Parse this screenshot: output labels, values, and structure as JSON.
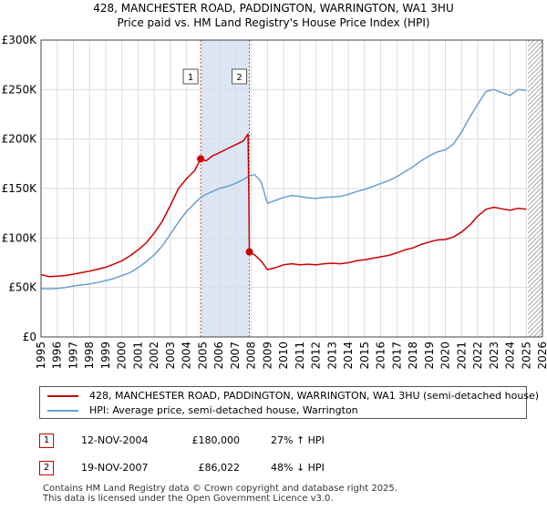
{
  "chart_data": {
    "type": "line",
    "title": "428, MANCHESTER ROAD, PADDINGTON, WARRINGTON, WA1 3HU",
    "subtitle": "Price paid vs. HM Land Registry's House Price Index (HPI)",
    "xlim": [
      1995,
      2026
    ],
    "ylim": [
      0,
      300000
    ],
    "x_ticks": [
      1995,
      1996,
      1997,
      1998,
      1999,
      2000,
      2001,
      2002,
      2003,
      2004,
      2005,
      2006,
      2007,
      2008,
      2009,
      2010,
      2011,
      2012,
      2013,
      2014,
      2015,
      2016,
      2017,
      2018,
      2019,
      2020,
      2021,
      2022,
      2023,
      2024,
      2025,
      2026
    ],
    "y_ticks": [
      0,
      50000,
      100000,
      150000,
      200000,
      250000,
      300000
    ],
    "y_tick_labels": [
      "£0",
      "£50K",
      "£100K",
      "£150K",
      "£200K",
      "£250K",
      "£300K"
    ],
    "grid": true,
    "shaded_period": [
      2004.87,
      2007.88
    ],
    "future_hatch_from": 2025.1,
    "series": [
      {
        "name": "428, MANCHESTER ROAD, PADDINGTON, WARRINGTON, WA1 3HU (semi-detached house)",
        "color": "#cc0000",
        "points": [
          [
            1995.0,
            63000
          ],
          [
            1995.5,
            61000
          ],
          [
            1996.0,
            61500
          ],
          [
            1996.5,
            62000
          ],
          [
            1997.0,
            63500
          ],
          [
            1997.5,
            65000
          ],
          [
            1998.0,
            66500
          ],
          [
            1998.5,
            68500
          ],
          [
            1999.0,
            70500
          ],
          [
            1999.5,
            73500
          ],
          [
            2000.0,
            77000
          ],
          [
            2000.5,
            82000
          ],
          [
            2001.0,
            88000
          ],
          [
            2001.5,
            95000
          ],
          [
            2002.0,
            105000
          ],
          [
            2002.5,
            117000
          ],
          [
            2003.0,
            133000
          ],
          [
            2003.5,
            150000
          ],
          [
            2004.0,
            160000
          ],
          [
            2004.5,
            168000
          ],
          [
            2004.87,
            180000
          ],
          [
            2005.2,
            178000
          ],
          [
            2005.6,
            183000
          ],
          [
            2006.0,
            186000
          ],
          [
            2006.5,
            190000
          ],
          [
            2007.0,
            194000
          ],
          [
            2007.5,
            198000
          ],
          [
            2007.8,
            205000
          ],
          [
            2007.85,
            140000
          ],
          [
            2007.88,
            86022
          ],
          [
            2008.2,
            83000
          ],
          [
            2008.6,
            77000
          ],
          [
            2009.0,
            68000
          ],
          [
            2009.5,
            70000
          ],
          [
            2010.0,
            73000
          ],
          [
            2010.5,
            74000
          ],
          [
            2011.0,
            73000
          ],
          [
            2011.5,
            73500
          ],
          [
            2012.0,
            73000
          ],
          [
            2012.5,
            74000
          ],
          [
            2013.0,
            74500
          ],
          [
            2013.5,
            74000
          ],
          [
            2014.0,
            75000
          ],
          [
            2014.5,
            77000
          ],
          [
            2015.0,
            78000
          ],
          [
            2015.5,
            79500
          ],
          [
            2016.0,
            81000
          ],
          [
            2016.5,
            82500
          ],
          [
            2017.0,
            85000
          ],
          [
            2017.5,
            88000
          ],
          [
            2018.0,
            90000
          ],
          [
            2018.5,
            93500
          ],
          [
            2019.0,
            96000
          ],
          [
            2019.5,
            98000
          ],
          [
            2020.0,
            98500
          ],
          [
            2020.5,
            101000
          ],
          [
            2021.0,
            106000
          ],
          [
            2021.5,
            113000
          ],
          [
            2022.0,
            122000
          ],
          [
            2022.5,
            129000
          ],
          [
            2023.0,
            131000
          ],
          [
            2023.5,
            129500
          ],
          [
            2024.0,
            128000
          ],
          [
            2024.5,
            130000
          ],
          [
            2025.0,
            129000
          ]
        ]
      },
      {
        "name": "HPI: Average price, semi-detached house, Warrington",
        "color": "#6a9fd4",
        "points": [
          [
            1995.0,
            49000
          ],
          [
            1995.5,
            48500
          ],
          [
            1996.0,
            49000
          ],
          [
            1996.5,
            50000
          ],
          [
            1997.0,
            51500
          ],
          [
            1997.5,
            52500
          ],
          [
            1998.0,
            53500
          ],
          [
            1998.5,
            55000
          ],
          [
            1999.0,
            57000
          ],
          [
            1999.5,
            59000
          ],
          [
            2000.0,
            62000
          ],
          [
            2000.5,
            65000
          ],
          [
            2001.0,
            70000
          ],
          [
            2001.5,
            76000
          ],
          [
            2002.0,
            83000
          ],
          [
            2002.5,
            92000
          ],
          [
            2003.0,
            104000
          ],
          [
            2003.5,
            116000
          ],
          [
            2004.0,
            127000
          ],
          [
            2004.5,
            135000
          ],
          [
            2004.87,
            141000
          ],
          [
            2005.2,
            144000
          ],
          [
            2005.6,
            147000
          ],
          [
            2006.0,
            150000
          ],
          [
            2006.5,
            152000
          ],
          [
            2007.0,
            155000
          ],
          [
            2007.5,
            159000
          ],
          [
            2007.88,
            163000
          ],
          [
            2008.2,
            164000
          ],
          [
            2008.6,
            157000
          ],
          [
            2009.0,
            135000
          ],
          [
            2009.5,
            138000
          ],
          [
            2010.0,
            141000
          ],
          [
            2010.5,
            143000
          ],
          [
            2011.0,
            142000
          ],
          [
            2011.5,
            140500
          ],
          [
            2012.0,
            140000
          ],
          [
            2012.5,
            141000
          ],
          [
            2013.0,
            141500
          ],
          [
            2013.5,
            142000
          ],
          [
            2014.0,
            144000
          ],
          [
            2014.5,
            147000
          ],
          [
            2015.0,
            149000
          ],
          [
            2015.5,
            152000
          ],
          [
            2016.0,
            155000
          ],
          [
            2016.5,
            158000
          ],
          [
            2017.0,
            162000
          ],
          [
            2017.5,
            167000
          ],
          [
            2018.0,
            172000
          ],
          [
            2018.5,
            178000
          ],
          [
            2019.0,
            183000
          ],
          [
            2019.5,
            187000
          ],
          [
            2020.0,
            189000
          ],
          [
            2020.5,
            195000
          ],
          [
            2021.0,
            207000
          ],
          [
            2021.5,
            222000
          ],
          [
            2022.0,
            235000
          ],
          [
            2022.5,
            248000
          ],
          [
            2023.0,
            250000
          ],
          [
            2023.5,
            247000
          ],
          [
            2024.0,
            244000
          ],
          [
            2024.5,
            250000
          ],
          [
            2025.0,
            249000
          ]
        ]
      }
    ],
    "annotations": [
      {
        "label": "1",
        "x": 2004.87,
        "y": 180000
      },
      {
        "label": "2",
        "x": 2007.88,
        "y": 86022
      }
    ]
  },
  "legend": {
    "entries": [
      {
        "label": "428, MANCHESTER ROAD, PADDINGTON, WARRINGTON, WA1 3HU (semi-detached house)",
        "color": "#cc0000"
      },
      {
        "label": "HPI: Average price, semi-detached house, Warrington",
        "color": "#6a9fd4"
      }
    ]
  },
  "sales": [
    {
      "num": "1",
      "date": "12-NOV-2004",
      "price": "£180,000",
      "hpi": "27% ↑ HPI"
    },
    {
      "num": "2",
      "date": "19-NOV-2007",
      "price": "£86,022",
      "hpi": "48% ↓ HPI"
    }
  ],
  "footer": {
    "line1": "Contains HM Land Registry data © Crown copyright and database right 2025.",
    "line2": "This data is licensed under the Open Government Licence v3.0."
  }
}
